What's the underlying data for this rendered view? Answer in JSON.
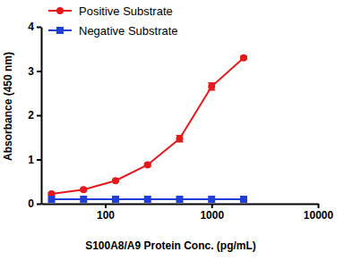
{
  "chart_data": {
    "type": "line",
    "x_label": "S100A8/A9 Protein Conc. (pg/mL)",
    "y_label": "Absorbance (450 nm)",
    "x": [
      31.25,
      62.5,
      125,
      250,
      500,
      1000,
      2000
    ],
    "series": [
      {
        "name": "Positive Substrate",
        "color": "#e31a1c",
        "marker": "circle",
        "line_style": "solid",
        "values": [
          0.22,
          0.32,
          0.52,
          0.88,
          1.47,
          2.65,
          3.3
        ],
        "errors": [
          0.02,
          0.02,
          0.02,
          0.03,
          0.07,
          0.08,
          0.03
        ]
      },
      {
        "name": "Negative Substrate",
        "color": "#1f3fd6",
        "marker": "square",
        "line_style": "solid",
        "values": [
          0.1,
          0.1,
          0.1,
          0.1,
          0.1,
          0.1,
          0.1
        ]
      }
    ],
    "log": "x",
    "xlim": [
      25,
      10000
    ],
    "xticks": [
      100,
      1000,
      10000
    ],
    "ylim": [
      0,
      4
    ],
    "yticks": [
      0,
      1,
      2,
      3,
      4
    ],
    "grid": false,
    "legend": "top-left"
  }
}
